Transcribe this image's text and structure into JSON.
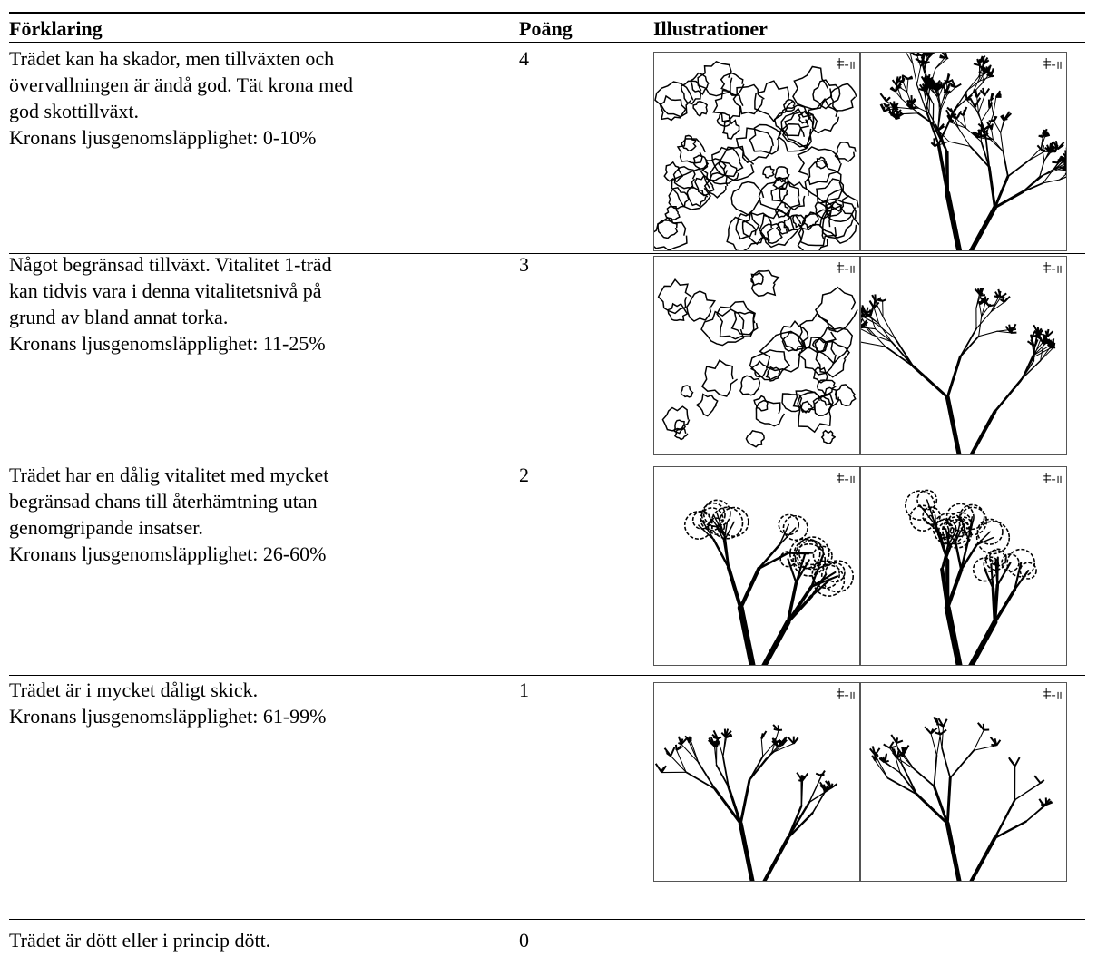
{
  "header": {
    "col1": "Förklaring",
    "col2": "Poäng",
    "col3": "Illustrationer"
  },
  "rows": [
    {
      "lines": [
        "Trädet kan ha skador, men tillväxten och",
        "övervallningen är ändå god. Tät krona med",
        "god skottillväxt.",
        "Kronans ljusgenomsläpplighet: 0-10%"
      ],
      "points": 4
    },
    {
      "lines": [
        "Något begränsad tillväxt. Vitalitet 1-träd",
        "kan tidvis vara i denna vitalitetsnivå på",
        "grund av bland annat torka.",
        "Kronans ljusgenomsläpplighet: 11-25%"
      ],
      "points": 3
    },
    {
      "lines": [
        "Trädet har en dålig vitalitet med mycket",
        "begränsad chans till återhämtning utan",
        "genomgripande insatser.",
        "Kronans ljusgenomsläpplighet: 26-60%"
      ],
      "points": 2
    },
    {
      "lines": [
        "Trädet är i mycket dåligt skick.",
        "Kronans ljusgenomsläpplighet: 61-99%"
      ],
      "points": 1
    },
    {
      "lines": [
        "Trädet är dött eller i princip dött."
      ],
      "points": 0
    }
  ]
}
